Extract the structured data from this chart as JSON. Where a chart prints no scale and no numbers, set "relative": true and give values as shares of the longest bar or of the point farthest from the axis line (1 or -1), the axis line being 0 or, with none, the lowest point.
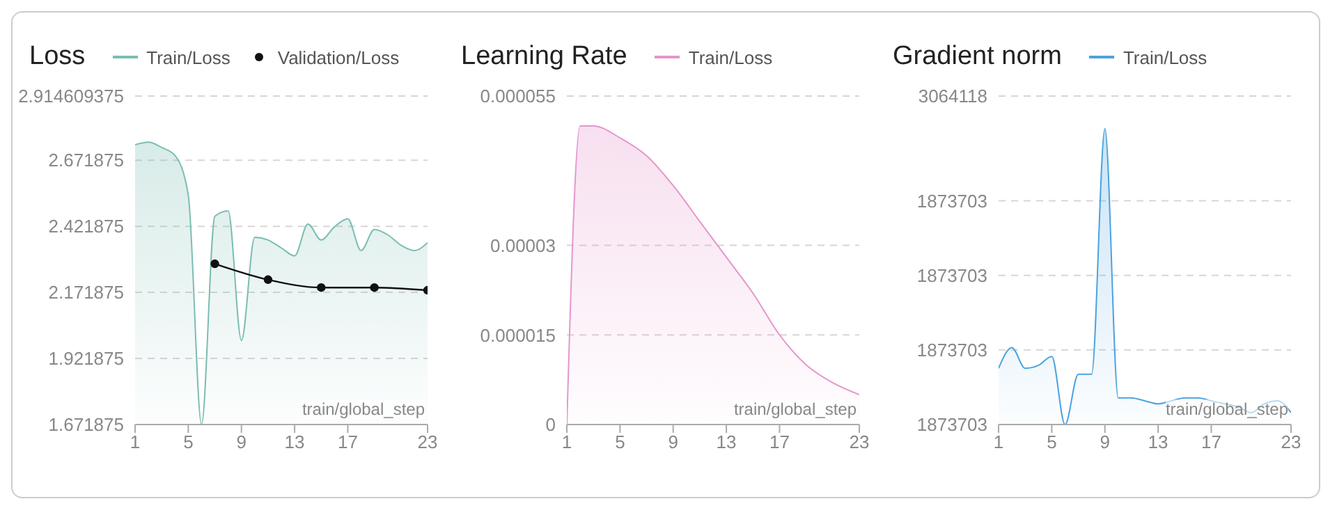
{
  "chart_data": [
    {
      "type": "area",
      "title": "Loss",
      "xlabel": "train/global_step",
      "x": [
        1,
        2,
        3,
        4,
        5,
        6,
        7,
        8,
        9,
        10,
        11,
        12,
        13,
        14,
        15,
        16,
        17,
        18,
        19,
        20,
        21,
        22,
        23
      ],
      "xlim": [
        1,
        23
      ],
      "xticks": [
        1,
        5,
        9,
        13,
        17,
        23
      ],
      "ylim": [
        1.671875,
        2.914609375
      ],
      "yticks": [
        1.671875,
        1.921875,
        2.171875,
        2.421875,
        2.671875,
        2.914609375
      ],
      "grid": "y",
      "legend": "top",
      "series": [
        {
          "name": "Train/Loss",
          "color": "#7cbdb3",
          "values": [
            2.73,
            2.74,
            2.72,
            2.69,
            2.54,
            1.672,
            2.46,
            2.48,
            1.99,
            2.38,
            2.37,
            2.34,
            2.31,
            2.43,
            2.37,
            2.42,
            2.45,
            2.33,
            2.41,
            2.39,
            2.35,
            2.33,
            2.36
          ]
        },
        {
          "name": "Validation/Loss",
          "type": "line",
          "marker": "circle",
          "color": "#111111",
          "x": [
            7,
            11,
            15,
            19,
            23
          ],
          "values": [
            2.28,
            2.22,
            2.19,
            2.19,
            2.18
          ]
        }
      ]
    },
    {
      "type": "area",
      "title": "Learning Rate",
      "xlabel": "train/global_step",
      "x": [
        1,
        2,
        3,
        5,
        7,
        9,
        11,
        13,
        15,
        17,
        19,
        21,
        23
      ],
      "xlim": [
        1,
        23
      ],
      "xticks": [
        1,
        5,
        9,
        13,
        17,
        23
      ],
      "ylim": [
        0,
        5.5e-05
      ],
      "yticks": [
        0,
        {
          "value": 1.5e-05,
          "label": "0.000015"
        },
        {
          "value": 3e-05,
          "label": "0.00003"
        },
        {
          "value": 5.5e-05,
          "label": "0.000055"
        }
      ],
      "grid": "y",
      "legend": "top",
      "series": [
        {
          "name": "Train/Loss",
          "color": "#e596cc",
          "values": [
            0,
            5e-05,
            5e-05,
            4.8e-05,
            4.5e-05,
            4e-05,
            3.4e-05,
            2.8e-05,
            2.2e-05,
            1.5e-05,
            1e-05,
            7e-06,
            5e-06
          ]
        }
      ]
    },
    {
      "type": "area",
      "title": "Gradient norm",
      "xlabel": "train/global_step",
      "x": [
        1,
        2,
        3,
        4,
        5,
        6,
        7,
        8,
        9,
        10,
        11,
        12,
        13,
        14,
        15,
        16,
        17,
        18,
        19,
        20,
        21,
        22,
        23
      ],
      "xlim": [
        1,
        23
      ],
      "xticks": [
        1,
        5,
        9,
        13,
        17,
        23
      ],
      "relative": true,
      "annotations": [
        "3064118",
        "1873703",
        "1873703",
        "1873703",
        "1873703"
      ],
      "grid": "y",
      "legend": "top",
      "series": [
        {
          "name": "Train/Loss",
          "color": "#4ba3de",
          "values": [
            0.19,
            0.26,
            0.19,
            0.2,
            0.23,
            0,
            0.17,
            0.17,
            1,
            0.09,
            0.09,
            0.08,
            0.07,
            0.08,
            0.09,
            0.09,
            0.08,
            0.07,
            0.06,
            0.04,
            0.07,
            0.08,
            0.04
          ]
        }
      ]
    }
  ]
}
